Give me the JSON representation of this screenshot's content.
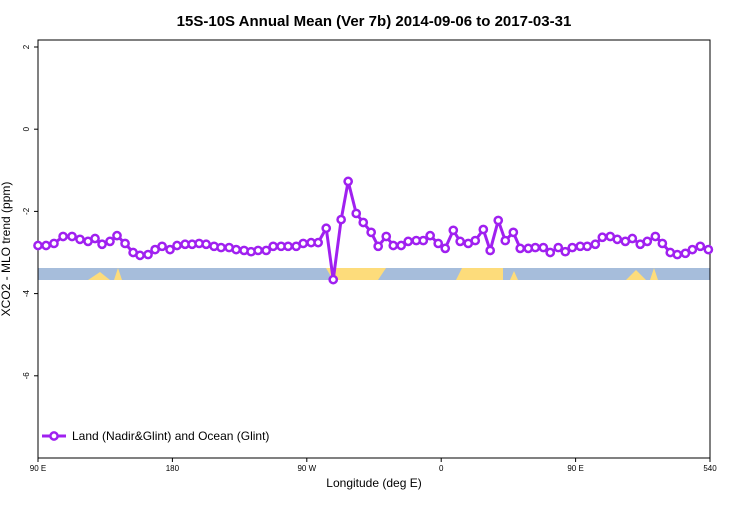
{
  "chart_data": {
    "type": "line",
    "title": "15S-10S Annual Mean (Ver 7b)   2014-09-06 to 2017-03-31",
    "x_label": "Longitude (deg E)",
    "y_label": "XCO2 - MLO trend (ppm)",
    "xlim": [
      90,
      540
    ],
    "ylim": [
      -8.0,
      2.17
    ],
    "xticks": [
      {
        "value": 90,
        "label": "90 E"
      },
      180,
      {
        "value": 270,
        "label": "90 W"
      },
      {
        "value": 360,
        "label": "0"
      },
      {
        "value": 450,
        "label": "90 E"
      },
      540
    ],
    "yticks": [
      2,
      0,
      -2,
      -4,
      -6
    ],
    "legend": "bottom-left",
    "x": [
      90,
      95.4,
      100.7,
      106.8,
      112.8,
      118.1,
      123.5,
      128.2,
      132.9,
      138.2,
      142.9,
      148.3,
      153.7,
      158.3,
      163.7,
      168.4,
      173.1,
      178.4,
      183.1,
      188.5,
      193.2,
      197.9,
      202.6,
      207.9,
      212.6,
      218,
      222.7,
      228,
      232.7,
      237.4,
      242.8,
      247.5,
      252.8,
      257.5,
      262.9,
      267.6,
      272.9,
      277.6,
      283,
      287.7,
      293,
      297.7,
      303.1,
      307.8,
      313.1,
      317.8,
      323.2,
      327.9,
      333.2,
      337.9,
      343.3,
      348,
      352.6,
      358,
      362.7,
      368.1,
      372.7,
      378.1,
      382.8,
      388.2,
      392.8,
      398.2,
      402.9,
      408.3,
      412.9,
      418.3,
      423,
      428.4,
      433,
      438.4,
      443.1,
      447.8,
      453.1,
      457.8,
      463.2,
      467.9,
      473.2,
      477.9,
      483.3,
      488,
      493.3,
      498,
      503.4,
      508.1,
      513.4,
      518.1,
      523.5,
      528.2,
      533.5,
      538.9
    ],
    "series": [
      {
        "name": "Land (Nadir&Glint) and Ocean (Glint)",
        "color": "#a020f0",
        "values": [
          -2.83,
          -2.83,
          -2.78,
          -2.61,
          -2.61,
          -2.68,
          -2.73,
          -2.66,
          -2.8,
          -2.73,
          -2.59,
          -2.78,
          -3.0,
          -3.07,
          -3.05,
          -2.93,
          -2.85,
          -2.93,
          -2.83,
          -2.8,
          -2.8,
          -2.78,
          -2.8,
          -2.85,
          -2.88,
          -2.88,
          -2.93,
          -2.95,
          -2.98,
          -2.95,
          -2.95,
          -2.85,
          -2.85,
          -2.85,
          -2.85,
          -2.78,
          -2.76,
          -2.76,
          -2.41,
          -3.66,
          -2.2,
          -1.27,
          -2.05,
          -2.27,
          -2.51,
          -2.85,
          -2.61,
          -2.83,
          -2.83,
          -2.73,
          -2.71,
          -2.71,
          -2.59,
          -2.78,
          -2.9,
          -2.46,
          -2.73,
          -2.78,
          -2.71,
          -2.44,
          -2.95,
          -2.22,
          -2.71,
          -2.51,
          -2.9,
          -2.9,
          -2.88,
          -2.88,
          -3.0,
          -2.88,
          -2.98,
          -2.88,
          -2.85,
          -2.85,
          -2.8,
          -2.63,
          -2.61,
          -2.68,
          -2.73,
          -2.66,
          -2.8,
          -2.73,
          -2.61,
          -2.78,
          -3.0,
          -3.05,
          -3.02,
          -2.93,
          -2.85,
          -2.93
        ]
      }
    ]
  }
}
